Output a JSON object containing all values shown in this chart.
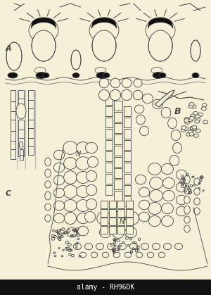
{
  "background_color": "#f5f0d8",
  "watermark_text": "alamy - RH96DK",
  "line_color": "#444444",
  "dark_fill": "#111111",
  "hatch_fill": "#cccccc",
  "fig_width": 3.0,
  "fig_height": 4.19,
  "dpi": 100,
  "label_A": "A",
  "label_B": "B",
  "label_C": "C",
  "label_N1": "N",
  "label_N2": "N",
  "label_N3": "N"
}
